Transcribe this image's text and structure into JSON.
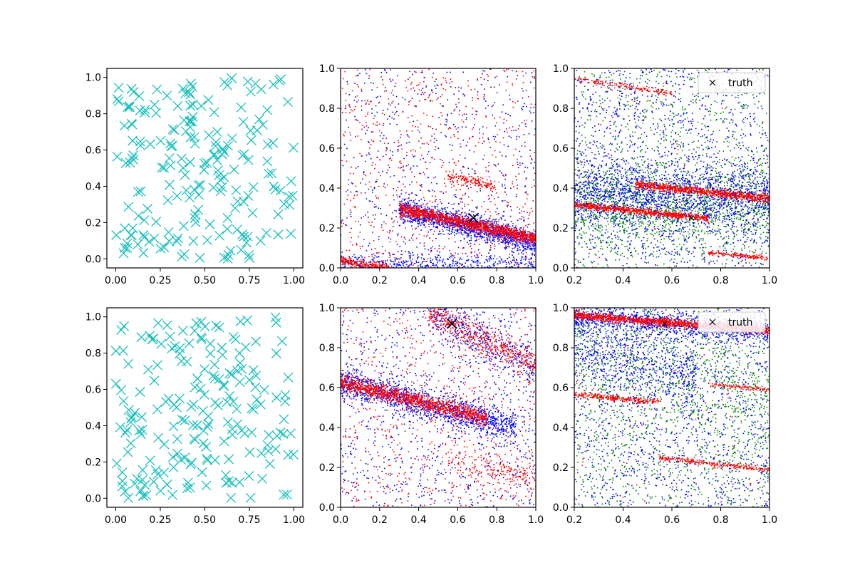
{
  "figure": {
    "layout": "2x3 grid of scatter plots",
    "background": "#ffffff"
  },
  "colors": {
    "cyan": "#1bbfbf",
    "blue": "#0000ff",
    "red": "#ff0000",
    "green": "#008000",
    "black": "#000000"
  },
  "chart_data": [
    {
      "id": "r0c0",
      "type": "scatter",
      "marker": "x-large",
      "color": "cyan",
      "xlim": [
        -0.05,
        1.05
      ],
      "ylim": [
        -0.05,
        1.05
      ],
      "xticks": [
        "0.00",
        "0.25",
        "0.50",
        "0.75",
        "1.00"
      ],
      "xtick_values": [
        0,
        0.25,
        0.5,
        0.75,
        1.0
      ],
      "yticks": [
        "0.0",
        "0.2",
        "0.4",
        "0.6",
        "0.8",
        "1.0"
      ],
      "ytick_values": [
        0,
        0.2,
        0.4,
        0.6,
        0.8,
        1.0
      ],
      "n_points": 200,
      "distribution": "uniform random in [0,1]x[0,1]",
      "seed": 11
    },
    {
      "id": "r0c1",
      "type": "scatter",
      "marker": "small-dot",
      "xlim": [
        0,
        1
      ],
      "ylim": [
        0,
        1
      ],
      "xticks": [
        "0.0",
        "0.2",
        "0.4",
        "0.6",
        "0.8",
        "1.0"
      ],
      "xtick_values": [
        0,
        0.2,
        0.4,
        0.6,
        0.8,
        1.0
      ],
      "yticks": [
        "0.0",
        "0.2",
        "0.4",
        "0.6",
        "0.8",
        "1.0"
      ],
      "ytick_values": [
        0,
        0.2,
        0.4,
        0.6,
        0.8,
        1.0
      ],
      "series": [
        {
          "name": "blue samples",
          "color": "blue",
          "seed": 21,
          "components": [
            {
              "type": "band",
              "n": 1400,
              "x": [
                0.3,
                1.0
              ],
              "line": [
                [
                  0.3,
                  0.3
                ],
                [
                  1.0,
                  0.13
                ]
              ],
              "sd": 0.03
            },
            {
              "type": "band",
              "n": 500,
              "x": [
                0.0,
                1.0
              ],
              "line": [
                [
                  0.0,
                  0.03
                ],
                [
                  1.0,
                  0.02
                ]
              ],
              "sd": 0.03
            },
            {
              "type": "uniform",
              "n": 700
            }
          ]
        },
        {
          "name": "red samples",
          "color": "red",
          "seed": 22,
          "components": [
            {
              "type": "band",
              "n": 1300,
              "x": [
                0.3,
                1.0
              ],
              "line": [
                [
                  0.3,
                  0.3
                ],
                [
                  1.0,
                  0.15
                ]
              ],
              "sd": 0.015
            },
            {
              "type": "band",
              "n": 250,
              "x": [
                0.0,
                0.25
              ],
              "line": [
                [
                  0.0,
                  0.04
                ],
                [
                  0.25,
                  0.0
                ]
              ],
              "sd": 0.01
            },
            {
              "type": "band",
              "n": 150,
              "x": [
                0.55,
                0.8
              ],
              "line": [
                [
                  0.55,
                  0.46
                ],
                [
                  0.8,
                  0.41
                ]
              ],
              "sd": 0.015
            },
            {
              "type": "uniform",
              "n": 650
            }
          ]
        }
      ],
      "truth_marker": {
        "x": 0.68,
        "y": 0.25,
        "size": "large"
      }
    },
    {
      "id": "r0c2",
      "type": "scatter",
      "marker": "small-dot",
      "xlim": [
        0.2,
        1.0
      ],
      "ylim": [
        0,
        1
      ],
      "xticks": [
        "0.2",
        "0.4",
        "0.6",
        "0.8",
        "1.0"
      ],
      "xtick_values": [
        0.2,
        0.4,
        0.6,
        0.8,
        1.0
      ],
      "yticks": [
        "0.0",
        "0.2",
        "0.4",
        "0.6",
        "0.8",
        "1.0"
      ],
      "ytick_values": [
        0,
        0.2,
        0.4,
        0.6,
        0.8,
        1.0
      ],
      "series": [
        {
          "name": "green samples",
          "color": "green",
          "seed": 31,
          "components": [
            {
              "type": "band",
              "n": 1200,
              "x": [
                0.2,
                1.0
              ],
              "line": [
                [
                  0.2,
                  0.32
                ],
                [
                  1.0,
                  0.32
                ]
              ],
              "sd": 0.1
            },
            {
              "type": "uniform",
              "n": 1000
            }
          ]
        },
        {
          "name": "blue samples",
          "color": "blue",
          "seed": 32,
          "components": [
            {
              "type": "band",
              "n": 1400,
              "x": [
                0.2,
                1.0
              ],
              "line": [
                [
                  0.2,
                  0.38
                ],
                [
                  1.0,
                  0.36
                ]
              ],
              "sd": 0.08
            },
            {
              "type": "uniform",
              "n": 1200
            }
          ]
        },
        {
          "name": "red samples",
          "color": "red",
          "seed": 33,
          "components": [
            {
              "type": "band",
              "n": 700,
              "x": [
                0.2,
                0.75
              ],
              "line": [
                [
                  0.2,
                  0.32
                ],
                [
                  0.75,
                  0.25
                ]
              ],
              "sd": 0.008
            },
            {
              "type": "band",
              "n": 800,
              "x": [
                0.45,
                1.0
              ],
              "line": [
                [
                  0.45,
                  0.42
                ],
                [
                  1.0,
                  0.35
                ]
              ],
              "sd": 0.01
            },
            {
              "type": "band",
              "n": 150,
              "x": [
                0.2,
                0.6
              ],
              "line": [
                [
                  0.2,
                  0.95
                ],
                [
                  0.6,
                  0.88
                ]
              ],
              "sd": 0.008
            },
            {
              "type": "band",
              "n": 150,
              "x": [
                0.75,
                1.0
              ],
              "line": [
                [
                  0.75,
                  0.08
                ],
                [
                  1.0,
                  0.05
                ]
              ],
              "sd": 0.006
            },
            {
              "type": "uniform",
              "n": 30
            }
          ]
        }
      ],
      "truth_marker": {
        "x": 0.68,
        "y": 0.25,
        "size": "small"
      },
      "legend": {
        "label": "truth",
        "placement": "top-right"
      }
    },
    {
      "id": "r1c0",
      "type": "scatter",
      "marker": "x-large",
      "color": "cyan",
      "xlim": [
        -0.05,
        1.05
      ],
      "ylim": [
        -0.05,
        1.05
      ],
      "xticks": [
        "0.00",
        "0.25",
        "0.50",
        "0.75",
        "1.00"
      ],
      "xtick_values": [
        0,
        0.25,
        0.5,
        0.75,
        1.0
      ],
      "yticks": [
        "0.0",
        "0.2",
        "0.4",
        "0.6",
        "0.8",
        "1.0"
      ],
      "ytick_values": [
        0,
        0.2,
        0.4,
        0.6,
        0.8,
        1.0
      ],
      "n_points": 200,
      "distribution": "uniform random in [0,1]x[0,1]",
      "seed": 12
    },
    {
      "id": "r1c1",
      "type": "scatter",
      "marker": "small-dot",
      "xlim": [
        0,
        1
      ],
      "ylim": [
        0,
        1
      ],
      "xticks": [
        "0.0",
        "0.2",
        "0.4",
        "0.6",
        "0.8",
        "1.0"
      ],
      "xtick_values": [
        0,
        0.2,
        0.4,
        0.6,
        0.8,
        1.0
      ],
      "yticks": [
        "0.0",
        "0.2",
        "0.4",
        "0.6",
        "0.8",
        "1.0"
      ],
      "ytick_values": [
        0,
        0.2,
        0.4,
        0.6,
        0.8,
        1.0
      ],
      "series": [
        {
          "name": "blue samples",
          "color": "blue",
          "seed": 41,
          "components": [
            {
              "type": "band",
              "n": 1300,
              "x": [
                0.0,
                0.9
              ],
              "line": [
                [
                  0.0,
                  0.63
                ],
                [
                  0.9,
                  0.4
                ]
              ],
              "sd": 0.04
            },
            {
              "type": "band",
              "n": 400,
              "x": [
                0.45,
                1.0
              ],
              "line": [
                [
                  0.45,
                  0.98
                ],
                [
                  1.0,
                  0.7
                ]
              ],
              "sd": 0.06
            },
            {
              "type": "uniform",
              "n": 900
            }
          ]
        },
        {
          "name": "red samples",
          "color": "red",
          "seed": 42,
          "components": [
            {
              "type": "band",
              "n": 1200,
              "x": [
                0.0,
                0.75
              ],
              "line": [
                [
                  0.0,
                  0.63
                ],
                [
                  0.75,
                  0.45
                ]
              ],
              "sd": 0.02
            },
            {
              "type": "band",
              "n": 500,
              "x": [
                0.45,
                1.0
              ],
              "line": [
                [
                  0.45,
                  0.97
                ],
                [
                  1.0,
                  0.72
                ]
              ],
              "sd": 0.04
            },
            {
              "type": "band",
              "n": 200,
              "x": [
                0.55,
                1.0
              ],
              "line": [
                [
                  0.55,
                  0.25
                ],
                [
                  1.0,
                  0.15
                ]
              ],
              "sd": 0.04
            },
            {
              "type": "uniform",
              "n": 600
            }
          ]
        }
      ],
      "truth_marker": {
        "x": 0.57,
        "y": 0.92,
        "size": "large"
      }
    },
    {
      "id": "r1c2",
      "type": "scatter",
      "marker": "small-dot",
      "xlim": [
        0.2,
        1.0
      ],
      "ylim": [
        0,
        1
      ],
      "xticks": [
        "0.2",
        "0.4",
        "0.6",
        "0.8",
        "1.0"
      ],
      "xtick_values": [
        0.2,
        0.4,
        0.6,
        0.8,
        1.0
      ],
      "yticks": [
        "0.0",
        "0.2",
        "0.4",
        "0.6",
        "0.8",
        "1.0"
      ],
      "ytick_values": [
        0,
        0.2,
        0.4,
        0.6,
        0.8,
        1.0
      ],
      "series": [
        {
          "name": "green samples",
          "color": "green",
          "seed": 51,
          "components": [
            {
              "type": "band",
              "n": 600,
              "x": [
                0.2,
                1.0
              ],
              "line": [
                [
                  0.2,
                  0.75
                ],
                [
                  1.0,
                  0.55
                ]
              ],
              "sd": 0.15
            },
            {
              "type": "uniform",
              "n": 1100
            }
          ]
        },
        {
          "name": "blue samples",
          "color": "blue",
          "seed": 52,
          "components": [
            {
              "type": "band",
              "n": 900,
              "x": [
                0.2,
                1.0
              ],
              "line": [
                [
                  0.2,
                  0.96
                ],
                [
                  1.0,
                  0.88
                ]
              ],
              "sd": 0.03
            },
            {
              "type": "band",
              "n": 600,
              "x": [
                0.2,
                0.7
              ],
              "line": [
                [
                  0.2,
                  0.8
                ],
                [
                  0.7,
                  0.65
                ]
              ],
              "sd": 0.1
            },
            {
              "type": "uniform",
              "n": 1200
            }
          ]
        },
        {
          "name": "red samples",
          "color": "red",
          "seed": 53,
          "components": [
            {
              "type": "band",
              "n": 1300,
              "x": [
                0.2,
                1.0
              ],
              "line": [
                [
                  0.2,
                  0.965
                ],
                [
                  1.0,
                  0.89
                ]
              ],
              "sd": 0.01
            },
            {
              "type": "band",
              "n": 250,
              "x": [
                0.2,
                0.55
              ],
              "line": [
                [
                  0.2,
                  0.57
                ],
                [
                  0.55,
                  0.53
                ]
              ],
              "sd": 0.008
            },
            {
              "type": "band",
              "n": 250,
              "x": [
                0.55,
                1.0
              ],
              "line": [
                [
                  0.55,
                  0.25
                ],
                [
                  1.0,
                  0.19
                ]
              ],
              "sd": 0.006
            },
            {
              "type": "band",
              "n": 100,
              "x": [
                0.75,
                1.0
              ],
              "line": [
                [
                  0.75,
                  0.62
                ],
                [
                  1.0,
                  0.59
                ]
              ],
              "sd": 0.006
            },
            {
              "type": "uniform",
              "n": 40
            }
          ]
        }
      ],
      "truth_marker": {
        "x": 0.57,
        "y": 0.92,
        "size": "small"
      },
      "legend": {
        "label": "truth",
        "placement": "top-right"
      }
    }
  ]
}
